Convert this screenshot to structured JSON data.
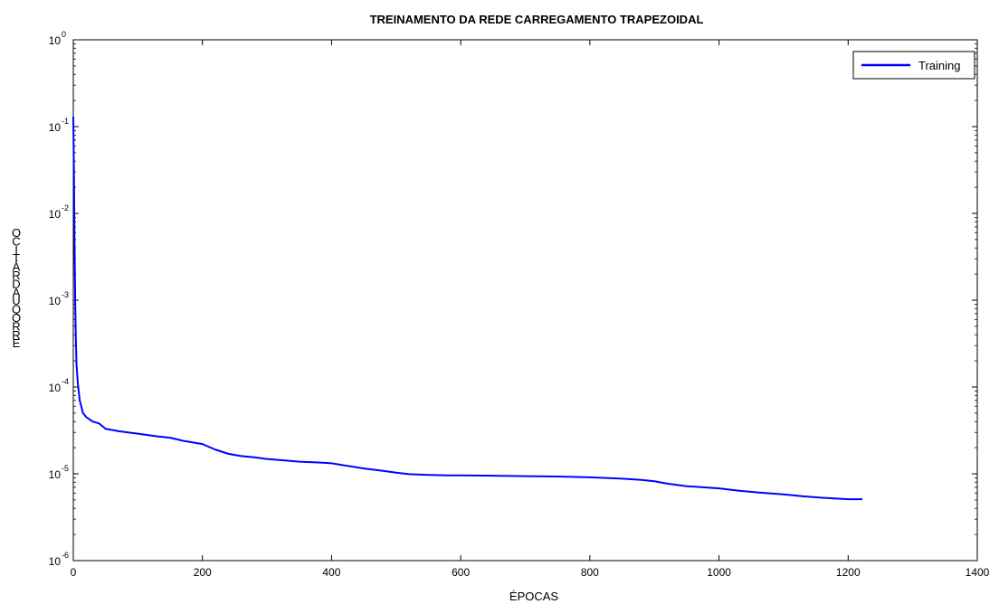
{
  "chart_data": {
    "type": "line",
    "title": "TREINAMENTO DA REDE CARREGAMENTO TRAPEZOIDAL",
    "xlabel": "ÉPOCAS",
    "ylabel": "ERRO QUADRÁTICO",
    "xlim": [
      0,
      1400
    ],
    "ylim": [
      1e-06,
      1
    ],
    "yscale": "log",
    "x_ticks": [
      0,
      200,
      400,
      600,
      800,
      1000,
      1200,
      1400
    ],
    "y_ticks": [
      {
        "base": "10",
        "exp": "0",
        "value": 1
      },
      {
        "base": "10",
        "exp": "-1",
        "value": 0.1
      },
      {
        "base": "10",
        "exp": "-2",
        "value": 0.01
      },
      {
        "base": "10",
        "exp": "-3",
        "value": 0.001
      },
      {
        "base": "10",
        "exp": "-4",
        "value": 0.0001
      },
      {
        "base": "10",
        "exp": "-5",
        "value": 1e-05
      },
      {
        "base": "10",
        "exp": "-6",
        "value": 1e-06
      }
    ],
    "legend_position": "top-right",
    "grid": false,
    "series": [
      {
        "name": "Training",
        "color": "#0000ff",
        "x": [
          0,
          1,
          2,
          3,
          4,
          5,
          7,
          10,
          15,
          20,
          30,
          40,
          50,
          70,
          100,
          130,
          150,
          170,
          200,
          220,
          240,
          260,
          280,
          300,
          330,
          350,
          380,
          400,
          420,
          450,
          480,
          500,
          520,
          550,
          580,
          600,
          650,
          700,
          750,
          800,
          850,
          880,
          900,
          920,
          950,
          1000,
          1030,
          1060,
          1100,
          1130,
          1160,
          1200,
          1222
        ],
        "y": [
          0.13,
          0.03,
          0.004,
          0.0009,
          0.00035,
          0.00018,
          0.00011,
          7e-05,
          5e-05,
          4.5e-05,
          4e-05,
          3.8e-05,
          3.3e-05,
          3.1e-05,
          2.9e-05,
          2.7e-05,
          2.6e-05,
          2.4e-05,
          2.2e-05,
          1.9e-05,
          1.7e-05,
          1.6e-05,
          1.55e-05,
          1.48e-05,
          1.42e-05,
          1.38e-05,
          1.35e-05,
          1.32e-05,
          1.25e-05,
          1.15e-05,
          1.08e-05,
          1.03e-05,
          9.9e-06,
          9.7e-06,
          9.6e-06,
          9.6e-06,
          9.5e-06,
          9.4e-06,
          9.3e-06,
          9.1e-06,
          8.8e-06,
          8.5e-06,
          8.2e-06,
          7.7e-06,
          7.2e-06,
          6.8e-06,
          6.4e-06,
          6.1e-06,
          5.8e-06,
          5.5e-06,
          5.3e-06,
          5.1e-06,
          5.1e-06
        ]
      }
    ]
  }
}
